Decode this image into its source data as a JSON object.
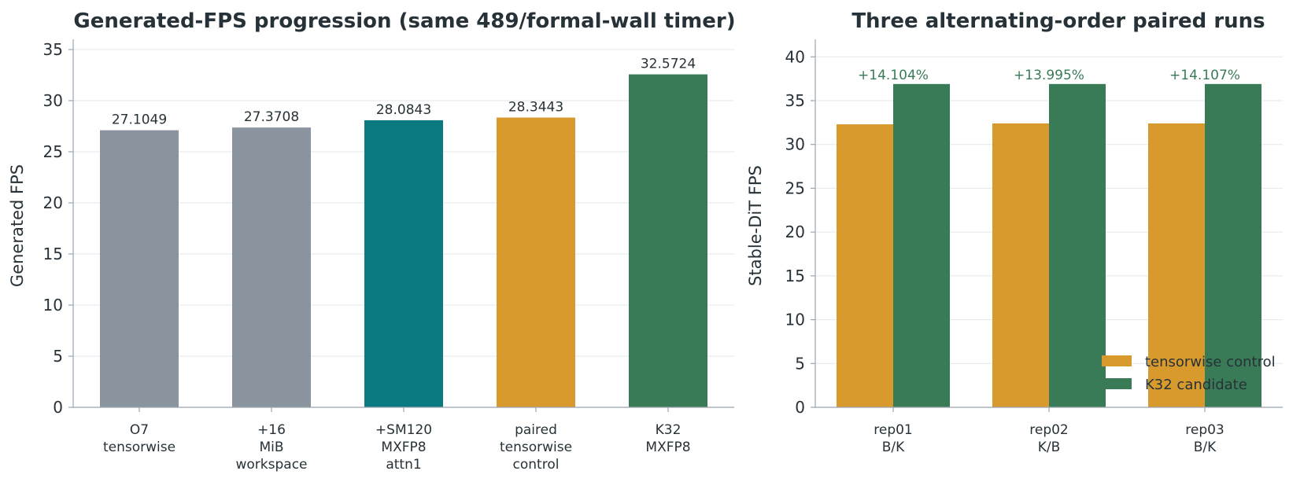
{
  "chart_data": [
    {
      "type": "bar",
      "title": "Generated-FPS progression (same 489/formal-wall timer)",
      "xlabel": "",
      "ylabel": "Generated FPS",
      "ylim": [
        0,
        36
      ],
      "yticks": [
        "0",
        "5",
        "10",
        "15",
        "20",
        "25",
        "30",
        "35"
      ],
      "categories": [
        [
          "O7",
          "tensorwise"
        ],
        [
          "+16",
          "MiB",
          "workspace"
        ],
        [
          "+SM120",
          "MXFP8",
          "attn1"
        ],
        [
          "paired",
          "tensorwise",
          "control"
        ],
        [
          "K32",
          "MXFP8"
        ]
      ],
      "values": [
        27.1049,
        27.3708,
        28.0843,
        28.3443,
        32.5724
      ],
      "value_labels": [
        "27.1049",
        "27.3708",
        "28.0843",
        "28.3443",
        "32.5724"
      ],
      "colors": [
        "#8a949e",
        "#8a949e",
        "#0b7a80",
        "#d99a2d",
        "#3a7b57"
      ],
      "grid": true
    },
    {
      "type": "bar",
      "title": "Three alternating-order paired runs",
      "xlabel": "",
      "ylabel": "Stable-DiT FPS",
      "ylim": [
        0,
        42
      ],
      "yticks": [
        "0",
        "5",
        "10",
        "15",
        "20",
        "25",
        "30",
        "35",
        "40"
      ],
      "categories": [
        [
          "rep01",
          "B/K"
        ],
        [
          "rep02",
          "K/B"
        ],
        [
          "rep03",
          "B/K"
        ]
      ],
      "series": [
        {
          "name": "tensorwise control",
          "values": [
            32.3,
            32.4,
            32.4
          ],
          "color": "#d99a2d"
        },
        {
          "name": "K32 candidate",
          "values": [
            36.9,
            36.9,
            36.9
          ],
          "color": "#3a7b57"
        }
      ],
      "annotations": [
        "+14.104%",
        "+13.995%",
        "+14.107%"
      ],
      "annotation_color": "#3a7b57",
      "legend": "lower-right",
      "grid": true
    }
  ]
}
